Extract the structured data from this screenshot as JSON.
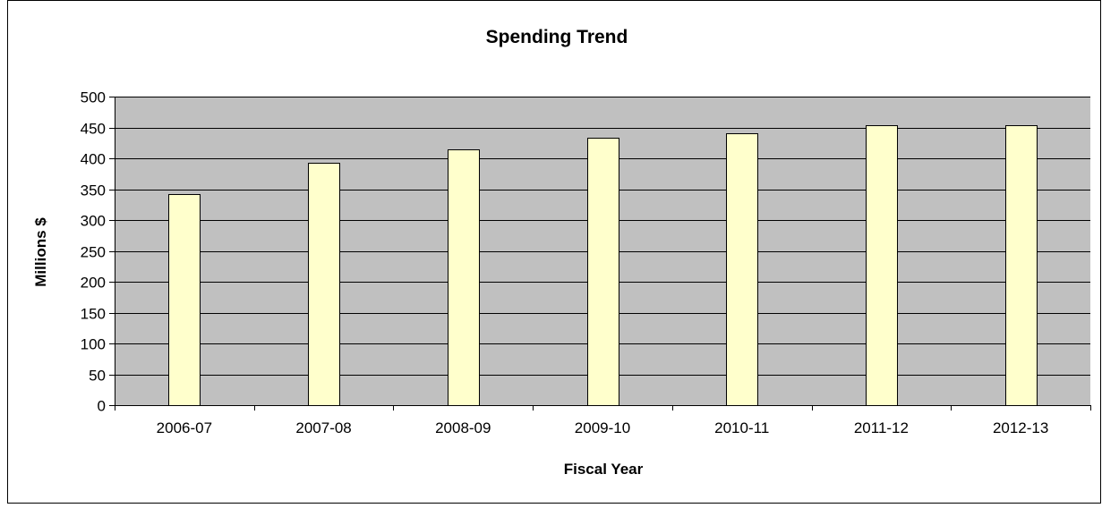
{
  "chart_data": {
    "type": "bar",
    "title": "Spending Trend",
    "xlabel": "Fiscal Year",
    "ylabel": "Millions $",
    "categories": [
      "2006-07",
      "2007-08",
      "2008-09",
      "2009-10",
      "2010-11",
      "2011-12",
      "2012-13"
    ],
    "values": [
      342,
      393,
      415,
      433,
      440,
      454,
      454
    ],
    "ylim": [
      0,
      500
    ],
    "yticks": [
      0,
      50,
      100,
      150,
      200,
      250,
      300,
      350,
      400,
      450,
      500
    ],
    "ytick_labels": [
      "0",
      "50",
      "100",
      "150",
      "200",
      "250",
      "300",
      "350",
      "400",
      "450",
      "500"
    ],
    "grid": true,
    "legend": "none",
    "colors": {
      "plot_background": "#c0c0c0",
      "bar_fill": "#ffffcc",
      "bar_stroke": "#000000",
      "grid": "#000000"
    }
  }
}
